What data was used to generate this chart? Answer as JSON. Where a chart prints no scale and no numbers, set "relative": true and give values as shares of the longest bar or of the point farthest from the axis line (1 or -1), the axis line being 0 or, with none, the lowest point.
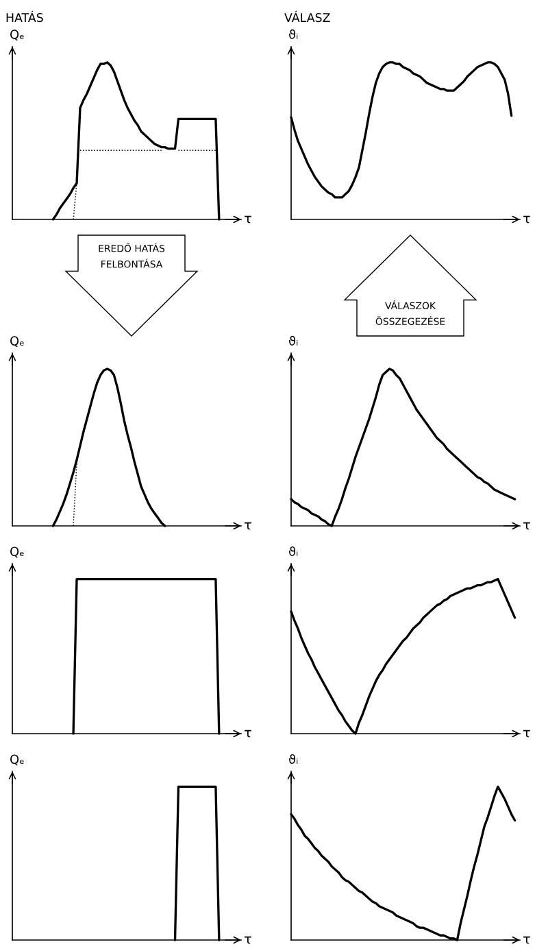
{
  "chart_data": [
    {
      "type": "line",
      "title": "HATÁS",
      "ylabel": "Qₑ",
      "xlabel": "τ",
      "relative": true,
      "annotations": [
        "EREDŐ HATÁS\nFELBONTÁSA"
      ],
      "categories": [
        null,
        null,
        null,
        null,
        null,
        null,
        null,
        null,
        null,
        null,
        null,
        null,
        null,
        null,
        null,
        null,
        null,
        null,
        null,
        null,
        null,
        null,
        null,
        null,
        null,
        null,
        null,
        null,
        null,
        null,
        null,
        null,
        null,
        null,
        null,
        null,
        null,
        null,
        null,
        null,
        null,
        null,
        null,
        null,
        null,
        null,
        null,
        null,
        null,
        null,
        null,
        null,
        null,
        null,
        null,
        null,
        null,
        null,
        null,
        null,
        null,
        null,
        null,
        null,
        null,
        null,
        null
      ],
      "series": [
        {
          "color": "#000000",
          "values": [
            null,
            null,
            null,
            null,
            null,
            null,
            null,
            null,
            null,
            null,
            null,
            null,
            0,
            0.03,
            0.07,
            0.1,
            0.13,
            0.16,
            0.2,
            0.23,
            0.71,
            0.76,
            0.8,
            0.85,
            0.9,
            0.95,
            0.99,
            0.99,
            1,
            0.98,
            0.94,
            0.88,
            0.82,
            0.76,
            0.71,
            0.67,
            0.63,
            0.6,
            0.56,
            0.54,
            0.52,
            0.5,
            0.48,
            0.47,
            0.46,
            0.46,
            0.45,
            0.45,
            0.45,
            0.64,
            0.64,
            0.64,
            0.64,
            0.64,
            0.64,
            0.64,
            0.64,
            0.64,
            0.64,
            0.64,
            0.64,
            0,
            null,
            null,
            null,
            null,
            null
          ]
        },
        {
          "color": "#000000",
          "line_style": "dotted",
          "values": [
            null,
            null,
            null,
            null,
            null,
            null,
            null,
            null,
            null,
            null,
            null,
            null,
            null,
            null,
            null,
            null,
            null,
            null,
            0,
            0.23,
            null,
            null,
            null,
            null,
            null,
            null,
            null,
            null,
            null,
            null,
            null,
            null,
            null,
            null,
            null,
            null,
            null,
            null,
            null,
            null,
            null,
            null,
            null,
            null,
            null,
            null,
            null,
            null,
            null,
            null,
            null,
            null,
            null,
            null,
            null,
            null,
            null,
            null,
            null,
            null,
            null,
            null,
            null,
            null,
            null,
            null,
            null
          ]
        },
        {
          "color": "#000000",
          "line_style": "dotted",
          "values": [
            null,
            null,
            null,
            null,
            null,
            null,
            null,
            null,
            null,
            null,
            null,
            null,
            null,
            null,
            null,
            null,
            null,
            null,
            null,
            null,
            0.44,
            0.44,
            0.44,
            0.44,
            0.44,
            0.44,
            0.44,
            0.44,
            0.44,
            0.44,
            0.44,
            0.44,
            0.44,
            0.44,
            0.44,
            0.44,
            0.44,
            0.44,
            0.44,
            0.44,
            0.44,
            0.44,
            0.44,
            0.44,
            0.44,
            null,
            null,
            null,
            null,
            0.44,
            0.44,
            0.44,
            0.44,
            0.44,
            0.44,
            0.44,
            0.44,
            0.44,
            0.44,
            0.44,
            0.44,
            null,
            null,
            null,
            null,
            null,
            null
          ]
        }
      ]
    },
    {
      "type": "line",
      "title": "VÁLASZ",
      "ylabel": "ϑᵢ",
      "xlabel": "τ",
      "relative": true,
      "annotations": [
        "VÁLASZOK\nÖSSZEGEZÉSE"
      ],
      "categories": [
        null,
        null,
        null,
        null,
        null,
        null,
        null,
        null,
        null,
        null,
        null,
        null,
        null,
        null,
        null,
        null,
        null,
        null,
        null,
        null,
        null,
        null,
        null,
        null,
        null,
        null,
        null,
        null,
        null,
        null,
        null,
        null,
        null,
        null,
        null,
        null,
        null,
        null,
        null,
        null,
        null,
        null,
        null,
        null,
        null,
        null,
        null,
        null,
        null,
        null,
        null,
        null,
        null,
        null,
        null,
        null,
        null,
        null,
        null,
        null,
        null,
        null,
        null,
        null,
        null,
        null,
        null
      ],
      "series": [
        {
          "color": "#000000",
          "values": [
            0.65,
            0.57,
            0.5,
            0.45,
            0.4,
            0.35,
            0.31,
            0.27,
            0.24,
            0.21,
            0.19,
            0.17,
            0.16,
            0.14,
            0.14,
            0.14,
            0.16,
            0.18,
            0.22,
            0.27,
            0.33,
            0.44,
            0.55,
            0.67,
            0.78,
            0.87,
            0.93,
            0.97,
            0.99,
            1,
            1,
            0.99,
            0.99,
            0.97,
            0.96,
            0.95,
            0.93,
            0.92,
            0.91,
            0.89,
            0.87,
            0.86,
            0.85,
            0.84,
            0.83,
            0.83,
            0.82,
            0.82,
            0.82,
            0.84,
            0.86,
            0.88,
            0.91,
            0.93,
            0.95,
            0.97,
            0.98,
            0.99,
            1,
            1,
            0.99,
            0.97,
            0.93,
            0.89,
            0.8,
            0.66,
            null
          ]
        }
      ]
    },
    {
      "type": "line",
      "ylabel": "Qₑ",
      "xlabel": "τ",
      "relative": true,
      "categories": [
        null,
        null,
        null,
        null,
        null,
        null,
        null,
        null,
        null,
        null,
        null,
        null,
        null,
        null,
        null,
        null,
        null,
        null,
        null,
        null,
        null,
        null,
        null,
        null,
        null,
        null,
        null,
        null,
        null,
        null,
        null,
        null,
        null,
        null,
        null,
        null,
        null,
        null,
        null,
        null,
        null,
        null,
        null,
        null,
        null,
        null,
        null,
        null,
        null,
        null,
        null,
        null,
        null,
        null,
        null,
        null,
        null,
        null,
        null,
        null,
        null,
        null,
        null,
        null,
        null,
        null,
        null
      ],
      "series": [
        {
          "color": "#000000",
          "values": [
            null,
            null,
            null,
            null,
            null,
            null,
            null,
            null,
            null,
            null,
            null,
            null,
            0,
            0.04,
            0.09,
            0.14,
            0.2,
            0.27,
            0.34,
            0.42,
            0.51,
            0.6,
            0.68,
            0.76,
            0.84,
            0.91,
            0.96,
            0.99,
            1,
            0.99,
            0.96,
            0.88,
            0.78,
            0.67,
            0.58,
            0.5,
            0.41,
            0.33,
            0.25,
            0.2,
            0.15,
            0.11,
            0.08,
            0.05,
            0.02,
            0,
            null,
            null,
            null,
            null,
            null,
            null,
            null,
            null,
            null,
            null,
            null,
            null,
            null,
            null,
            null,
            null,
            null,
            null,
            null,
            null,
            null
          ]
        },
        {
          "color": "#000000",
          "line_style": "dotted",
          "values": [
            null,
            null,
            null,
            null,
            null,
            null,
            null,
            null,
            null,
            null,
            null,
            null,
            null,
            null,
            null,
            null,
            null,
            null,
            0,
            0.4,
            null,
            null,
            null,
            null,
            null,
            null,
            null,
            null,
            null,
            null,
            null,
            null,
            null,
            null,
            null,
            null,
            null,
            null,
            null,
            null,
            null,
            null,
            null,
            null,
            null,
            null,
            null,
            null,
            null,
            null,
            null,
            null,
            null,
            null,
            null,
            null,
            null,
            null,
            null,
            null,
            null,
            null,
            null,
            null,
            null,
            null,
            null
          ]
        }
      ]
    },
    {
      "type": "line",
      "ylabel": "ϑᵢ",
      "xlabel": "τ",
      "relative": true,
      "categories": [
        null,
        null,
        null,
        null,
        null,
        null,
        null,
        null,
        null,
        null,
        null,
        null,
        null,
        null,
        null,
        null,
        null,
        null,
        null,
        null,
        null,
        null,
        null,
        null,
        null,
        null,
        null,
        null,
        null,
        null,
        null,
        null,
        null,
        null,
        null,
        null,
        null,
        null,
        null,
        null,
        null,
        null,
        null,
        null,
        null,
        null,
        null,
        null,
        null,
        null,
        null,
        null,
        null,
        null,
        null,
        null,
        null,
        null,
        null,
        null,
        null,
        null,
        null,
        null,
        null,
        null,
        null
      ],
      "series": [
        {
          "color": "#000000",
          "values": [
            0.17,
            0.15,
            0.14,
            0.12,
            0.11,
            0.1,
            0.08,
            0.07,
            0.06,
            0.04,
            0.03,
            0.01,
            0,
            0.06,
            0.11,
            0.17,
            0.24,
            0.3,
            0.37,
            0.44,
            0.5,
            0.56,
            0.62,
            0.68,
            0.75,
            0.82,
            0.9,
            0.96,
            0.98,
            1,
            0.99,
            0.96,
            0.94,
            0.9,
            0.86,
            0.82,
            0.78,
            0.74,
            0.71,
            0.68,
            0.65,
            0.62,
            0.59,
            0.56,
            0.54,
            0.52,
            0.49,
            0.47,
            0.45,
            0.43,
            0.41,
            0.39,
            0.37,
            0.35,
            0.33,
            0.31,
            0.3,
            0.28,
            0.27,
            0.25,
            0.23,
            0.22,
            0.21,
            0.2,
            0.19,
            0.18,
            0.17
          ]
        }
      ]
    },
    {
      "type": "line",
      "ylabel": "Qₑ",
      "xlabel": "τ",
      "relative": true,
      "categories": [
        null,
        null,
        null,
        null,
        null,
        null,
        null,
        null,
        null,
        null,
        null,
        null,
        null,
        null,
        null,
        null,
        null,
        null,
        null,
        null,
        null,
        null,
        null,
        null,
        null,
        null,
        null,
        null,
        null,
        null,
        null,
        null,
        null,
        null,
        null,
        null,
        null,
        null,
        null,
        null,
        null,
        null,
        null,
        null,
        null,
        null,
        null,
        null,
        null,
        null,
        null,
        null,
        null,
        null,
        null,
        null,
        null,
        null,
        null,
        null,
        null,
        null,
        null,
        null,
        null,
        null,
        null
      ],
      "series": [
        {
          "color": "#000000",
          "values": [
            null,
            null,
            null,
            null,
            null,
            null,
            null,
            null,
            null,
            null,
            null,
            null,
            null,
            null,
            null,
            null,
            null,
            null,
            0,
            1,
            1,
            1,
            1,
            1,
            1,
            1,
            1,
            1,
            1,
            1,
            1,
            1,
            1,
            1,
            1,
            1,
            1,
            1,
            1,
            1,
            1,
            1,
            1,
            1,
            1,
            1,
            1,
            1,
            1,
            1,
            1,
            1,
            1,
            1,
            1,
            1,
            1,
            1,
            1,
            1,
            1,
            0,
            null,
            null,
            null,
            null,
            null
          ]
        }
      ]
    },
    {
      "type": "line",
      "ylabel": "ϑᵢ",
      "xlabel": "τ",
      "relative": true,
      "categories": [
        null,
        null,
        null,
        null,
        null,
        null,
        null,
        null,
        null,
        null,
        null,
        null,
        null,
        null,
        null,
        null,
        null,
        null,
        null,
        null,
        null,
        null,
        null,
        null,
        null,
        null,
        null,
        null,
        null,
        null,
        null,
        null,
        null,
        null,
        null,
        null,
        null,
        null,
        null,
        null,
        null,
        null,
        null,
        null,
        null,
        null,
        null,
        null,
        null,
        null,
        null,
        null,
        null,
        null,
        null,
        null,
        null,
        null,
        null,
        null,
        null,
        null,
        null,
        null,
        null,
        null,
        null
      ],
      "series": [
        {
          "color": "#000000",
          "values": [
            0.79,
            0.73,
            0.68,
            0.62,
            0.57,
            0.52,
            0.48,
            0.43,
            0.39,
            0.35,
            0.31,
            0.27,
            0.23,
            0.19,
            0.15,
            0.12,
            0.08,
            0.05,
            0.02,
            0,
            0.07,
            0.12,
            0.18,
            0.24,
            0.29,
            0.34,
            0.38,
            0.41,
            0.45,
            0.48,
            0.51,
            0.54,
            0.57,
            0.6,
            0.62,
            0.65,
            0.68,
            0.7,
            0.72,
            0.75,
            0.77,
            0.79,
            0.81,
            0.83,
            0.84,
            0.86,
            0.87,
            0.89,
            0.9,
            0.91,
            0.92,
            0.93,
            0.94,
            0.94,
            0.95,
            0.96,
            0.96,
            0.97,
            0.98,
            0.98,
            0.99,
            1,
            0.95,
            0.9,
            0.85,
            0.8,
            0.75
          ]
        }
      ]
    },
    {
      "type": "line",
      "ylabel": "Qₑ",
      "xlabel": "τ",
      "relative": true,
      "categories": [
        null,
        null,
        null,
        null,
        null,
        null,
        null,
        null,
        null,
        null,
        null,
        null,
        null,
        null,
        null,
        null,
        null,
        null,
        null,
        null,
        null,
        null,
        null,
        null,
        null,
        null,
        null,
        null,
        null,
        null,
        null,
        null,
        null,
        null,
        null,
        null,
        null,
        null,
        null,
        null,
        null,
        null,
        null,
        null,
        null,
        null,
        null,
        null,
        null,
        null,
        null,
        null,
        null,
        null,
        null,
        null,
        null,
        null,
        null,
        null,
        null,
        null,
        null,
        null,
        null,
        null,
        null
      ],
      "series": [
        {
          "color": "#000000",
          "values": [
            null,
            null,
            null,
            null,
            null,
            null,
            null,
            null,
            null,
            null,
            null,
            null,
            null,
            null,
            null,
            null,
            null,
            null,
            null,
            null,
            null,
            null,
            null,
            null,
            null,
            null,
            null,
            null,
            null,
            null,
            null,
            null,
            null,
            null,
            null,
            null,
            null,
            null,
            null,
            null,
            null,
            null,
            null,
            null,
            null,
            null,
            null,
            null,
            0,
            1,
            1,
            1,
            1,
            1,
            1,
            1,
            1,
            1,
            1,
            1,
            1,
            0,
            null,
            null,
            null,
            null,
            null
          ]
        }
      ]
    },
    {
      "type": "line",
      "ylabel": "ϑᵢ",
      "xlabel": "τ",
      "relative": true,
      "categories": [
        null,
        null,
        null,
        null,
        null,
        null,
        null,
        null,
        null,
        null,
        null,
        null,
        null,
        null,
        null,
        null,
        null,
        null,
        null,
        null,
        null,
        null,
        null,
        null,
        null,
        null,
        null,
        null,
        null,
        null,
        null,
        null,
        null,
        null,
        null,
        null,
        null,
        null,
        null,
        null,
        null,
        null,
        null,
        null,
        null,
        null,
        null,
        null,
        null,
        null,
        null,
        null,
        null,
        null,
        null,
        null,
        null,
        null,
        null,
        null,
        null,
        null,
        null,
        null,
        null,
        null,
        null
      ],
      "series": [
        {
          "color": "#000000",
          "values": [
            0.82,
            0.79,
            0.75,
            0.72,
            0.68,
            0.66,
            0.63,
            0.6,
            0.58,
            0.55,
            0.53,
            0.51,
            0.48,
            0.46,
            0.44,
            0.41,
            0.39,
            0.38,
            0.36,
            0.34,
            0.32,
            0.31,
            0.29,
            0.27,
            0.25,
            0.24,
            0.22,
            0.21,
            0.2,
            0.19,
            0.18,
            0.16,
            0.15,
            0.14,
            0.13,
            0.12,
            0.11,
            0.09,
            0.08,
            0.08,
            0.07,
            0.06,
            0.05,
            0.04,
            0.03,
            0.03,
            0.02,
            0.01,
            0.01,
            0,
            0.11,
            0.2,
            0.29,
            0.39,
            0.48,
            0.56,
            0.65,
            0.74,
            0.8,
            0.87,
            0.94,
            1,
            0.96,
            0.92,
            0.87,
            0.82,
            0.78
          ]
        }
      ]
    }
  ]
}
